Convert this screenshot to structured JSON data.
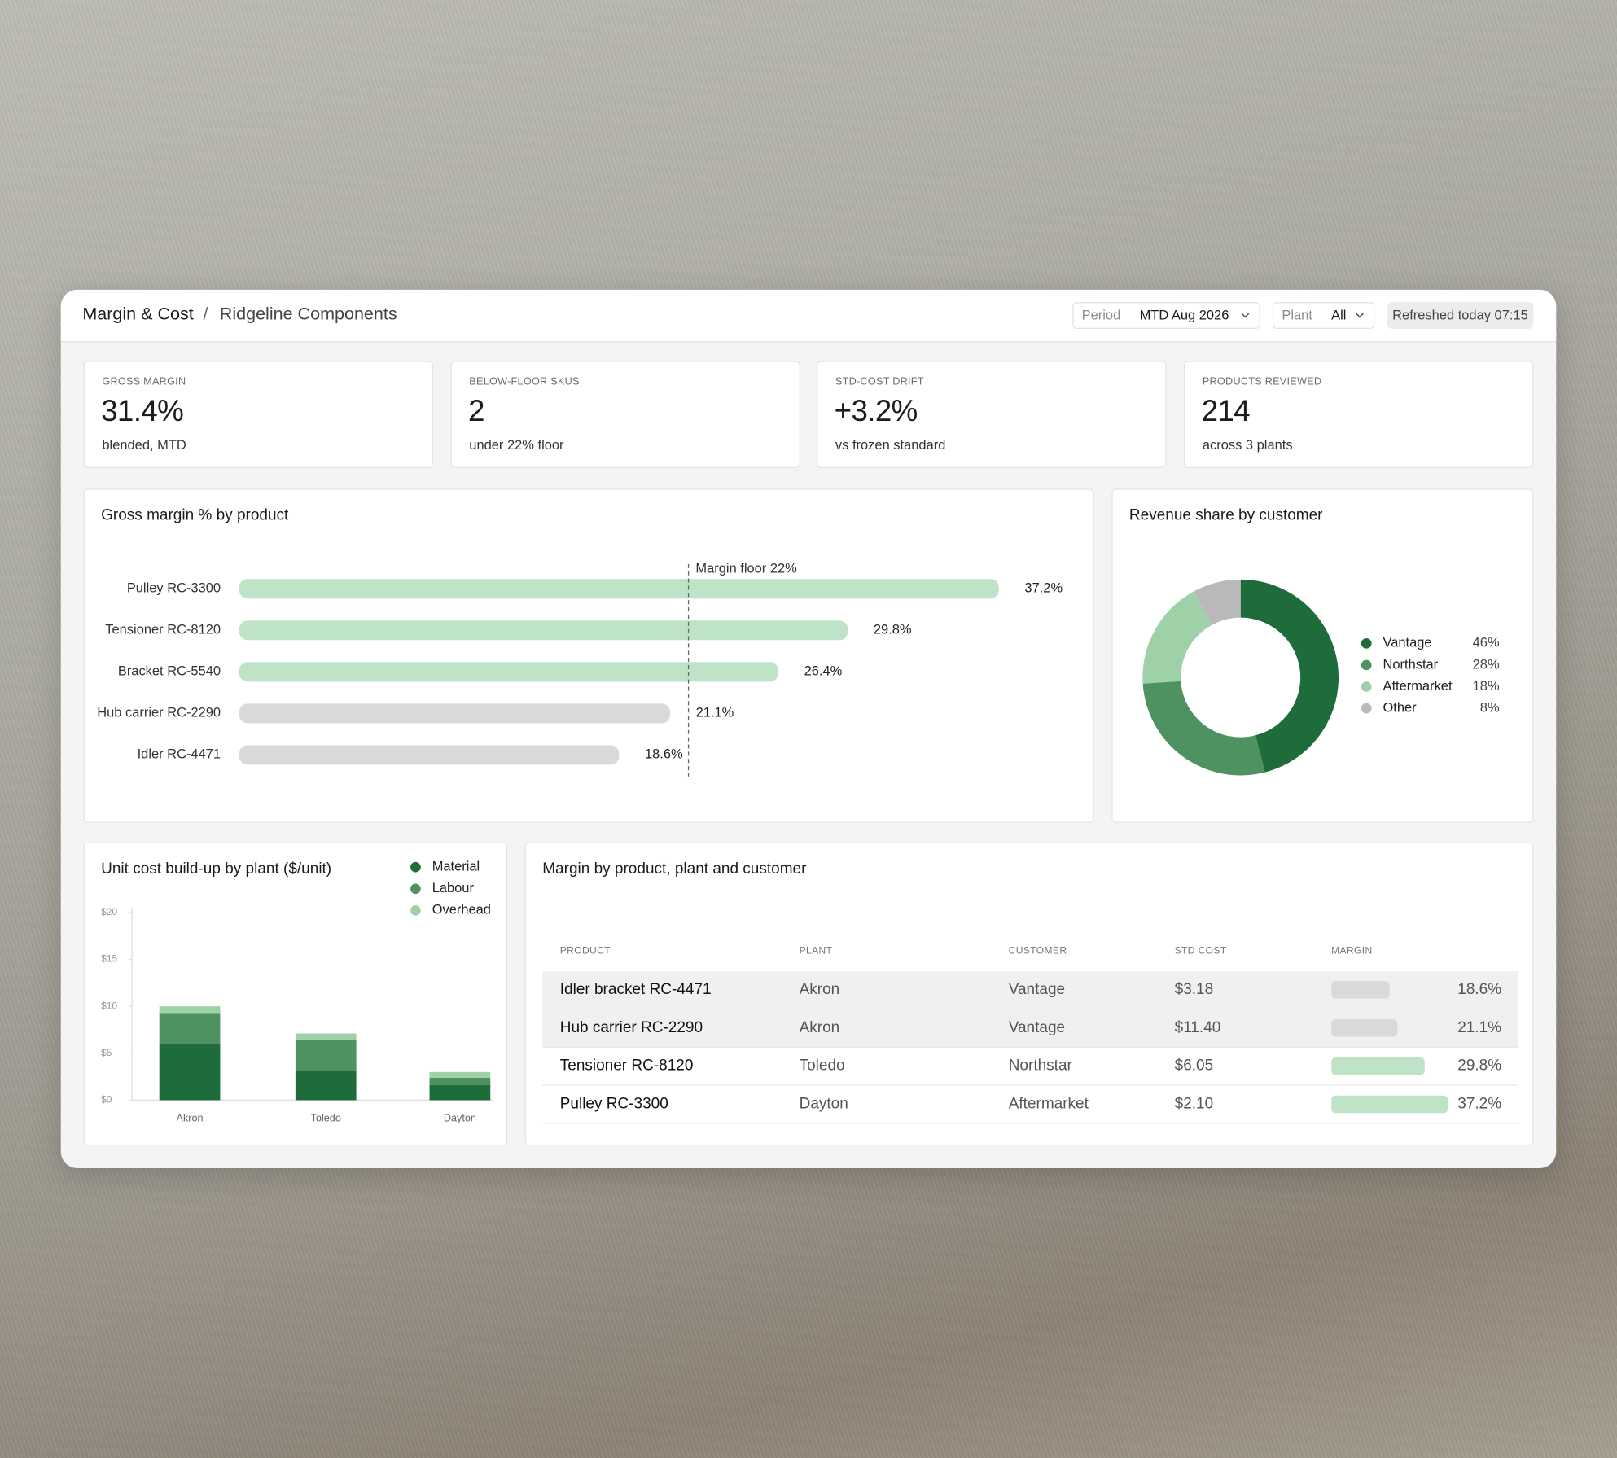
{
  "header": {
    "title": "Margin & Cost",
    "separator": "/",
    "subtitle": "Ridgeline Components",
    "filters": [
      {
        "label": "Period",
        "value": "MTD Aug 2026"
      },
      {
        "label": "Plant",
        "value": "All"
      }
    ],
    "status": "Refreshed today 07:15"
  },
  "kpis": [
    {
      "label": "GROSS MARGIN",
      "value": "31.4%",
      "note": "blended, MTD"
    },
    {
      "label": "BELOW-FLOOR SKUS",
      "value": "2",
      "note": "under 22% floor"
    },
    {
      "label": "STD-COST DRIFT",
      "value": "+3.2%",
      "note": "vs frozen standard"
    },
    {
      "label": "PRODUCTS REVIEWED",
      "value": "214",
      "note": "across 3 plants"
    }
  ],
  "margin_chart": {
    "type": "bar",
    "title": "Gross margin % by product",
    "categories": [
      "Pulley RC-3300",
      "Tensioner RC-8120",
      "Bracket RC-5540",
      "Hub carrier RC-2290",
      "Idler RC-4471"
    ],
    "values": [
      37.2,
      29.8,
      26.4,
      21.1,
      18.6
    ],
    "value_labels": [
      "37.2%",
      "29.8%",
      "26.4%",
      "21.1%",
      "18.6%"
    ],
    "xlim": [
      0,
      40
    ],
    "reference": {
      "value": 22,
      "label": "Margin floor 22%"
    },
    "colors": {
      "above": "#bfe3c7",
      "below": "#d9d9d9"
    }
  },
  "revenue_chart": {
    "type": "donut",
    "title": "Revenue share by customer",
    "categories": [
      "Vantage",
      "Northstar",
      "Aftermarket",
      "Other"
    ],
    "values": [
      46,
      28,
      18,
      8
    ],
    "value_labels": [
      "46%",
      "28%",
      "18%",
      "8%"
    ],
    "colors": [
      "#1e6b3c",
      "#4f9262",
      "#9fd1a8",
      "#b9b9b9"
    ]
  },
  "cost_chart": {
    "type": "stacked_bar",
    "title": "Unit cost build-up by plant ($/unit)",
    "categories": [
      "Akron",
      "Toledo",
      "Dayton"
    ],
    "series": [
      {
        "name": "Material",
        "color": "#1e6b3c",
        "values": [
          6.0,
          3.1,
          1.6
        ]
      },
      {
        "name": "Labour",
        "color": "#4f9262",
        "values": [
          3.3,
          3.3,
          0.8
        ]
      },
      {
        "name": "Overhead",
        "color": "#9fd1a8",
        "values": [
          0.7,
          0.7,
          0.6
        ]
      }
    ],
    "ylim": [
      0,
      20
    ],
    "yticks": [
      {
        "value": 0,
        "label": "$0"
      },
      {
        "value": 5,
        "label": "$5"
      },
      {
        "value": 10,
        "label": "$10"
      },
      {
        "value": 15,
        "label": "$15"
      },
      {
        "value": 20,
        "label": "$20"
      }
    ]
  },
  "table": {
    "title": "Margin by product, plant and customer",
    "columns": [
      "PRODUCT",
      "PLANT",
      "CUSTOMER",
      "STD COST",
      "MARGIN"
    ],
    "rows": [
      {
        "product": "Idler bracket RC-4471",
        "plant": "Akron",
        "customer": "Vantage",
        "std_cost": "$3.18",
        "margin": 18.6,
        "margin_label": "18.6%"
      },
      {
        "product": "Hub carrier RC-2290",
        "plant": "Akron",
        "customer": "Vantage",
        "std_cost": "$11.40",
        "margin": 21.1,
        "margin_label": "21.1%"
      },
      {
        "product": "Tensioner RC-8120",
        "plant": "Toledo",
        "customer": "Northstar",
        "std_cost": "$6.05",
        "margin": 29.8,
        "margin_label": "29.8%"
      },
      {
        "product": "Pulley RC-3300",
        "plant": "Dayton",
        "customer": "Aftermarket",
        "std_cost": "$2.10",
        "margin": 37.2,
        "margin_label": "37.2%"
      }
    ]
  }
}
